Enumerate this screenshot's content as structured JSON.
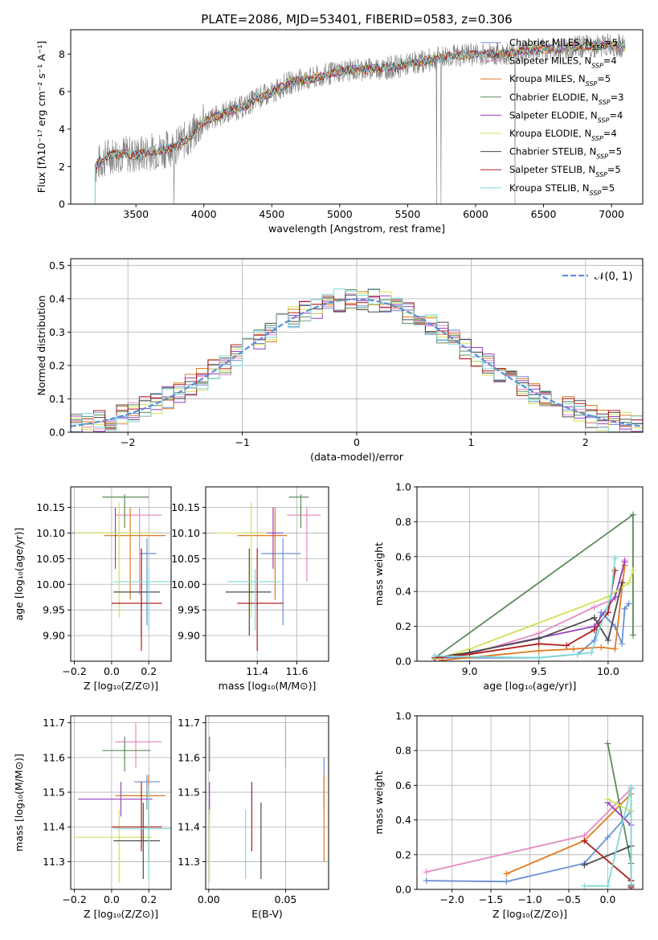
{
  "figure": {
    "title": "PLATE=2086, MJD=53401, FIBERID=0583, z=0.306"
  },
  "colors": {
    "chabrier_miles": "#6b8fd6",
    "salpeter_miles": "#e58cc2",
    "kroupa_miles": "#e07a1f",
    "chabrier_elodie": "#5b8a5b",
    "salpeter_elodie": "#9a3fbf",
    "kroupa_elodie": "#d4e05a",
    "chabrier_stelib": "#4a4a4a",
    "salpeter_stelib": "#b01e1e",
    "kroupa_stelib": "#7fd9d9",
    "observed": "#808080",
    "normal": "#5b8fd6"
  },
  "chart_data": [
    {
      "id": "spectrum",
      "type": "line",
      "title": "PLATE=2086, MJD=53401, FIBERID=0583, z=0.306",
      "xlabel": "wavelength [Angstrom, rest frame]",
      "ylabel": "Flux [fλ10⁻¹⁷ erg cm⁻² s⁻¹ A⁻¹]",
      "xlim": [
        3020,
        7230
      ],
      "ylim": [
        0,
        9.3
      ],
      "xticks": [
        3500,
        4000,
        4500,
        5000,
        5500,
        6000,
        6500,
        7000
      ],
      "yticks": [
        0,
        2,
        4,
        6,
        8
      ],
      "legend_position": "top-right",
      "grid": false,
      "legend": [
        {
          "key": "chabrier_miles",
          "label": "Chabrier MILES, N",
          "sub": "SSP",
          "suffix": "=5"
        },
        {
          "key": "salpeter_miles",
          "label": "Salpeter MILES, N",
          "sub": "SSP",
          "suffix": "=4"
        },
        {
          "key": "kroupa_miles",
          "label": "Kroupa MILES, N",
          "sub": "SSP",
          "suffix": "=5"
        },
        {
          "key": "chabrier_elodie",
          "label": "Chabrier ELODIE, N",
          "sub": "SSP",
          "suffix": "=3"
        },
        {
          "key": "salpeter_elodie",
          "label": "Salpeter ELODIE, N",
          "sub": "SSP",
          "suffix": "=4"
        },
        {
          "key": "kroupa_elodie",
          "label": "Kroupa ELODIE, N",
          "sub": "SSP",
          "suffix": "=4"
        },
        {
          "key": "chabrier_stelib",
          "label": "Chabrier STELIB, N",
          "sub": "SSP",
          "suffix": "=5"
        },
        {
          "key": "salpeter_stelib",
          "label": "Salpeter STELIB, N",
          "sub": "SSP",
          "suffix": "=5"
        },
        {
          "key": "kroupa_stelib",
          "label": "Kroupa STELIB, N",
          "sub": "SSP",
          "suffix": "=5"
        }
      ],
      "continuum": [
        [
          3200,
          2.0
        ],
        [
          3300,
          2.6
        ],
        [
          3400,
          2.7
        ],
        [
          3500,
          2.6
        ],
        [
          3600,
          2.8
        ],
        [
          3700,
          2.9
        ],
        [
          3800,
          3.1
        ],
        [
          3900,
          3.6
        ],
        [
          4000,
          4.4
        ],
        [
          4100,
          4.7
        ],
        [
          4200,
          5.0
        ],
        [
          4300,
          5.2
        ],
        [
          4400,
          5.7
        ],
        [
          4500,
          5.9
        ],
        [
          4600,
          6.4
        ],
        [
          4700,
          6.6
        ],
        [
          4800,
          6.7
        ],
        [
          4900,
          6.9
        ],
        [
          5000,
          7.1
        ],
        [
          5200,
          7.2
        ],
        [
          5400,
          7.3
        ],
        [
          5600,
          7.6
        ],
        [
          5800,
          7.9
        ],
        [
          6000,
          8.0
        ],
        [
          6200,
          8.0
        ],
        [
          6400,
          8.2
        ],
        [
          6600,
          8.3
        ],
        [
          6800,
          8.4
        ],
        [
          7000,
          8.5
        ],
        [
          7100,
          8.4
        ]
      ]
    },
    {
      "id": "residuals",
      "type": "line",
      "xlabel": "(data-model)/error",
      "ylabel": "Normed distribution",
      "xlim": [
        -2.5,
        2.5
      ],
      "ylim": [
        0,
        0.52
      ],
      "xticks": [
        -2,
        -1,
        0,
        1,
        2
      ],
      "yticks": [
        0.0,
        0.1,
        0.2,
        0.3,
        0.4,
        0.5
      ],
      "grid": true,
      "legend_position": "top-right",
      "normal_label": "𝒩(0, 1)"
    },
    {
      "id": "age_vs_z",
      "type": "scatter",
      "xlabel": "Z [log₁₀(Z/Z⊙)]",
      "ylabel": "age  [log₁₀(age/yr)]",
      "xlim": [
        -0.22,
        0.32
      ],
      "ylim": [
        9.85,
        10.19
      ],
      "xticks": [
        -0.2,
        0.0,
        0.2
      ],
      "yticks": [
        9.9,
        9.95,
        10.0,
        10.05,
        10.1,
        10.15
      ],
      "grid": true,
      "points": [
        {
          "key": "chabrier_miles",
          "x": 0.19,
          "y": 10.06,
          "xlo": 0.15,
          "xhi": 0.24,
          "ylo": 9.92,
          "yhi": 10.09
        },
        {
          "key": "salpeter_miles",
          "x": 0.15,
          "y": 10.135,
          "xlo": 0.02,
          "xhi": 0.27,
          "ylo": 9.98,
          "yhi": 10.15
        },
        {
          "key": "kroupa_miles",
          "x": 0.1,
          "y": 10.095,
          "xlo": -0.04,
          "xhi": 0.29,
          "ylo": 9.97,
          "yhi": 10.15
        },
        {
          "key": "chabrier_elodie",
          "x": 0.07,
          "y": 10.17,
          "xlo": -0.05,
          "xhi": 0.2,
          "ylo": 10.11,
          "yhi": 10.175
        },
        {
          "key": "salpeter_elodie",
          "x": 0.02,
          "y": 10.1,
          "xlo": -0.21,
          "xhi": 0.2,
          "ylo": 10.03,
          "yhi": 10.15
        },
        {
          "key": "kroupa_elodie",
          "x": 0.04,
          "y": 10.1,
          "xlo": -0.2,
          "xhi": 0.22,
          "ylo": 9.935,
          "yhi": 10.16
        },
        {
          "key": "chabrier_stelib",
          "x": 0.16,
          "y": 9.985,
          "xlo": 0.01,
          "xhi": 0.26,
          "ylo": 9.9,
          "yhi": 10.07
        },
        {
          "key": "salpeter_stelib",
          "x": 0.16,
          "y": 9.963,
          "xlo": 0.0,
          "xhi": 0.27,
          "ylo": 9.87,
          "yhi": 10.07
        },
        {
          "key": "kroupa_stelib",
          "x": 0.2,
          "y": 10.005,
          "xlo": 0.01,
          "xhi": 0.32,
          "ylo": 9.91,
          "yhi": 10.03
        }
      ]
    },
    {
      "id": "age_vs_mass",
      "type": "scatter",
      "xlabel": "mass [log₁₀(M/M⊙)]",
      "ylabel": "",
      "xlim": [
        11.14,
        11.76
      ],
      "ylim": [
        9.85,
        10.19
      ],
      "xticks": [
        11.4,
        11.6
      ],
      "yticks": [
        9.9,
        9.95,
        10.0,
        10.05,
        10.1,
        10.15
      ],
      "grid": true,
      "points": [
        {
          "key": "chabrier_miles",
          "x": 11.53,
          "y": 10.06,
          "xlo": 11.42,
          "xhi": 11.62,
          "ylo": 9.92,
          "yhi": 10.09
        },
        {
          "key": "salpeter_miles",
          "x": 11.65,
          "y": 10.135,
          "xlo": 11.55,
          "xhi": 11.72,
          "ylo": 10.005,
          "yhi": 10.15
        },
        {
          "key": "kroupa_miles",
          "x": 11.49,
          "y": 10.095,
          "xlo": 11.3,
          "xhi": 11.55,
          "ylo": 9.97,
          "yhi": 10.15
        },
        {
          "key": "chabrier_elodie",
          "x": 11.62,
          "y": 10.17,
          "xlo": 11.56,
          "xhi": 11.66,
          "ylo": 10.11,
          "yhi": 10.175
        },
        {
          "key": "salpeter_elodie",
          "x": 11.48,
          "y": 10.1,
          "xlo": 11.33,
          "xhi": 11.53,
          "ylo": 10.03,
          "yhi": 10.15
        },
        {
          "key": "kroupa_elodie",
          "x": 11.37,
          "y": 10.1,
          "xlo": 11.2,
          "xhi": 11.45,
          "ylo": 9.935,
          "yhi": 10.16
        },
        {
          "key": "chabrier_stelib",
          "x": 11.36,
          "y": 9.985,
          "xlo": 11.24,
          "xhi": 11.47,
          "ylo": 9.9,
          "yhi": 10.07
        },
        {
          "key": "salpeter_stelib",
          "x": 11.4,
          "y": 9.963,
          "xlo": 11.3,
          "xhi": 11.53,
          "ylo": 9.87,
          "yhi": 10.07
        },
        {
          "key": "kroupa_stelib",
          "x": 11.39,
          "y": 10.005,
          "xlo": 11.25,
          "xhi": 11.52,
          "ylo": 9.91,
          "yhi": 10.03
        }
      ]
    },
    {
      "id": "weight_vs_age",
      "type": "line",
      "xlabel": "age  [log₁₀(age/yr)]",
      "ylabel": "mass weight",
      "xlim": [
        8.62,
        10.25
      ],
      "ylim": [
        0,
        1.0
      ],
      "xticks": [
        9.0,
        9.5,
        10.0
      ],
      "yticks": [
        0.0,
        0.2,
        0.4,
        0.6,
        0.8,
        1.0
      ],
      "grid": true,
      "series": [
        {
          "key": "chabrier_miles",
          "x": [
            8.75,
            9.5,
            9.78,
            9.9,
            9.95,
            10.05,
            10.1,
            10.12,
            10.15
          ],
          "y": [
            0.02,
            0.02,
            0.04,
            0.12,
            0.28,
            0.2,
            0.1,
            0.3,
            0.33
          ]
        },
        {
          "key": "salpeter_miles",
          "x": [
            8.75,
            9.0,
            9.5,
            9.9,
            10.05,
            10.12
          ],
          "y": [
            0.02,
            0.04,
            0.16,
            0.31,
            0.36,
            0.58
          ]
        },
        {
          "key": "kroupa_miles",
          "x": [
            8.8,
            9.5,
            9.75,
            9.95,
            10.05,
            10.12
          ],
          "y": [
            0.005,
            0.06,
            0.07,
            0.08,
            0.07,
            0.55
          ]
        },
        {
          "key": "chabrier_elodie",
          "x": [
            8.75,
            10.18,
            10.18
          ],
          "y": [
            0.02,
            0.84,
            0.15
          ]
        },
        {
          "key": "salpeter_elodie",
          "x": [
            8.75,
            9.0,
            9.9,
            10.05,
            10.12
          ],
          "y": [
            0.01,
            0.05,
            0.2,
            0.37,
            0.57
          ]
        },
        {
          "key": "kroupa_elodie",
          "x": [
            8.75,
            9.0,
            10.0,
            10.15,
            10.18
          ],
          "y": [
            0.01,
            0.07,
            0.37,
            0.45,
            0.52
          ]
        },
        {
          "key": "chabrier_stelib",
          "x": [
            8.75,
            9.0,
            9.5,
            9.9,
            10.0,
            10.1
          ],
          "y": [
            0.02,
            0.05,
            0.13,
            0.25,
            0.12,
            0.45
          ]
        },
        {
          "key": "salpeter_stelib",
          "x": [
            8.75,
            9.0,
            9.5,
            9.7,
            9.9,
            10.0,
            10.05
          ],
          "y": [
            0.02,
            0.04,
            0.1,
            0.09,
            0.18,
            0.28,
            0.52
          ]
        },
        {
          "key": "kroupa_stelib",
          "x": [
            8.75,
            9.5,
            9.78,
            9.88,
            10.02,
            10.05
          ],
          "y": [
            0.03,
            0.02,
            0.04,
            0.05,
            0.37,
            0.59
          ]
        }
      ]
    },
    {
      "id": "mass_vs_z",
      "type": "scatter",
      "xlabel": "Z [log₁₀(Z/Z⊙)]",
      "ylabel": "mass [log₁₀(M/M⊙)]",
      "xlim": [
        -0.22,
        0.32
      ],
      "ylim": [
        11.22,
        11.72
      ],
      "xticks": [
        -0.2,
        0.0,
        0.2
      ],
      "yticks": [
        11.3,
        11.4,
        11.5,
        11.6,
        11.7
      ],
      "grid": true,
      "points": [
        {
          "key": "chabrier_miles",
          "x": 0.19,
          "y": 11.53,
          "xlo": 0.12,
          "xhi": 0.26,
          "ylo": 11.45,
          "yhi": 11.55
        },
        {
          "key": "salpeter_miles",
          "x": 0.13,
          "y": 11.645,
          "xlo": 0.02,
          "xhi": 0.27,
          "ylo": 11.57,
          "yhi": 11.7
        },
        {
          "key": "kroupa_miles",
          "x": 0.2,
          "y": 11.49,
          "xlo": 0.02,
          "xhi": 0.29,
          "ylo": 11.3,
          "yhi": 11.55
        },
        {
          "key": "chabrier_elodie",
          "x": 0.07,
          "y": 11.62,
          "xlo": -0.05,
          "xhi": 0.21,
          "ylo": 11.56,
          "yhi": 11.66
        },
        {
          "key": "salpeter_elodie",
          "x": 0.05,
          "y": 11.48,
          "xlo": -0.18,
          "xhi": 0.22,
          "ylo": 11.43,
          "yhi": 11.53
        },
        {
          "key": "kroupa_elodie",
          "x": 0.04,
          "y": 11.37,
          "xlo": -0.2,
          "xhi": 0.22,
          "ylo": 11.24,
          "yhi": 11.45
        },
        {
          "key": "chabrier_stelib",
          "x": 0.17,
          "y": 11.36,
          "xlo": 0.01,
          "xhi": 0.26,
          "ylo": 11.25,
          "yhi": 11.47
        },
        {
          "key": "salpeter_stelib",
          "x": 0.16,
          "y": 11.4,
          "xlo": 0.0,
          "xhi": 0.27,
          "ylo": 11.33,
          "yhi": 11.53
        },
        {
          "key": "kroupa_stelib",
          "x": 0.2,
          "y": 11.395,
          "xlo": 0.01,
          "xhi": 0.32,
          "ylo": 11.25,
          "yhi": 11.52
        }
      ]
    },
    {
      "id": "mass_vs_ebv",
      "type": "scatter",
      "xlabel": "E(B-V)",
      "ylabel": "",
      "xlim": [
        -0.002,
        0.078
      ],
      "ylim": [
        11.22,
        11.72
      ],
      "xticks": [
        0.0,
        0.05
      ],
      "yticks": [
        11.3,
        11.4,
        11.5,
        11.6,
        11.7
      ],
      "grid": true,
      "points": [
        {
          "key": "chabrier_miles",
          "x": 0.075,
          "y": 11.53,
          "ylo": 11.45,
          "yhi": 11.6
        },
        {
          "key": "salpeter_miles",
          "x": 0.05,
          "y": 11.645,
          "ylo": 11.57,
          "yhi": 11.7
        },
        {
          "key": "kroupa_miles",
          "x": 0.075,
          "y": 11.49,
          "ylo": 11.3,
          "yhi": 11.55
        },
        {
          "key": "chabrier_elodie",
          "x": 0.0005,
          "y": 11.62,
          "ylo": 11.56,
          "yhi": 11.66
        },
        {
          "key": "salpeter_elodie",
          "x": 0.0005,
          "y": 11.48,
          "ylo": 11.43,
          "yhi": 11.53
        },
        {
          "key": "kroupa_elodie",
          "x": 0.0005,
          "y": 11.37,
          "ylo": 11.24,
          "yhi": 11.45
        },
        {
          "key": "chabrier_stelib",
          "x": 0.034,
          "y": 11.36,
          "ylo": 11.25,
          "yhi": 11.47
        },
        {
          "key": "salpeter_stelib",
          "x": 0.028,
          "y": 11.4,
          "ylo": 11.33,
          "yhi": 11.53
        },
        {
          "key": "kroupa_stelib",
          "x": 0.024,
          "y": 11.395,
          "ylo": 11.25,
          "yhi": 11.45
        }
      ]
    },
    {
      "id": "weight_vs_z",
      "type": "line",
      "xlabel": "Z [log₁₀(Z/Z⊙)]",
      "ylabel": "mass weight",
      "xlim": [
        -2.45,
        0.45
      ],
      "ylim": [
        0,
        1.0
      ],
      "xticks": [
        -2.0,
        -1.5,
        -1.0,
        -0.5,
        0.0
      ],
      "yticks": [
        0.0,
        0.2,
        0.4,
        0.6,
        0.8,
        1.0
      ],
      "grid": true,
      "series": [
        {
          "key": "chabrier_miles",
          "x": [
            -2.33,
            -1.3,
            -0.3,
            0.0,
            0.3,
            0.3
          ],
          "y": [
            0.05,
            0.045,
            0.15,
            0.3,
            0.45,
            0.02
          ]
        },
        {
          "key": "salpeter_miles",
          "x": [
            -2.33,
            -0.3,
            0.3
          ],
          "y": [
            0.1,
            0.31,
            0.58
          ]
        },
        {
          "key": "kroupa_miles",
          "x": [
            -1.3,
            -0.3,
            0.3,
            0.3
          ],
          "y": [
            0.09,
            0.28,
            0.55,
            0.05
          ]
        },
        {
          "key": "chabrier_elodie",
          "x": [
            0.0,
            0.3,
            0.3
          ],
          "y": [
            0.84,
            0.15,
            0.02
          ]
        },
        {
          "key": "salpeter_elodie",
          "x": [
            0.0,
            0.3,
            0.3
          ],
          "y": [
            0.5,
            0.37,
            0.05
          ]
        },
        {
          "key": "kroupa_elodie",
          "x": [
            0.0,
            0.3,
            0.3
          ],
          "y": [
            0.52,
            0.45,
            0.01
          ]
        },
        {
          "key": "chabrier_stelib",
          "x": [
            -0.3,
            0.3,
            0.3
          ],
          "y": [
            0.14,
            0.25,
            0.02
          ]
        },
        {
          "key": "salpeter_stelib",
          "x": [
            -0.3,
            0.3,
            0.3
          ],
          "y": [
            0.28,
            0.05,
            0.01
          ]
        },
        {
          "key": "kroupa_stelib",
          "x": [
            -0.3,
            0.0,
            0.3,
            0.3
          ],
          "y": [
            0.02,
            0.02,
            0.59,
            0.03
          ]
        }
      ]
    }
  ]
}
